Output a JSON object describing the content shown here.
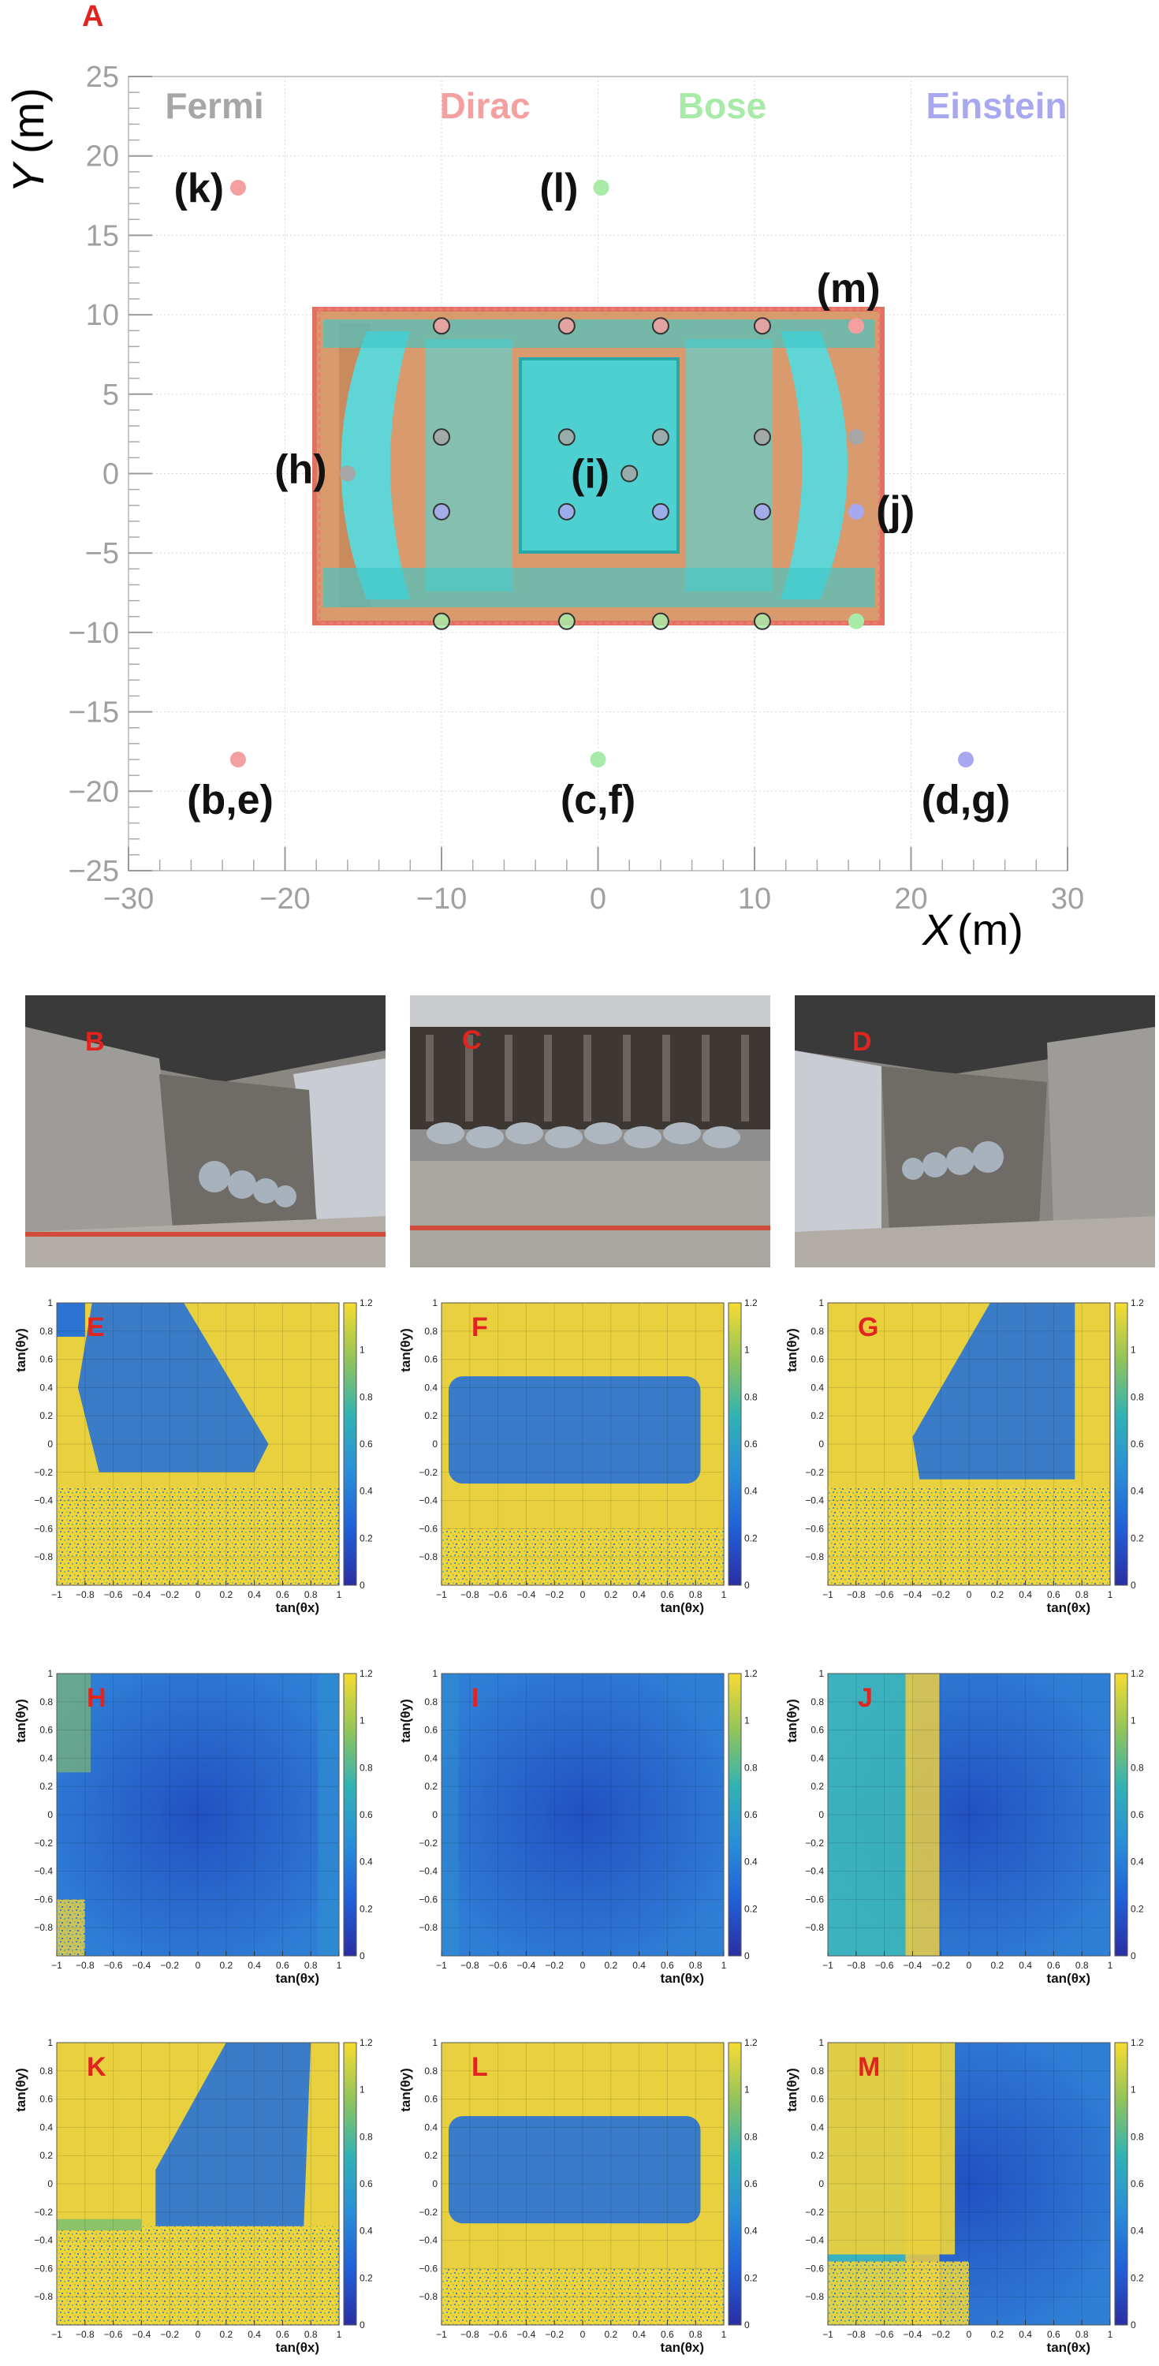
{
  "panel_a": {
    "letter": "A",
    "title_words": [
      {
        "text": "Fermi",
        "color": "#a6a6a6"
      },
      {
        "text": "Dirac",
        "color": "#f4a0a0"
      },
      {
        "text": "Bose",
        "color": "#a8eaa8"
      },
      {
        "text": "Einstein",
        "color": "#a8a8f0"
      }
    ],
    "xlabel_var": "X",
    "xlabel_unit": "(m)",
    "ylabel_var": "Y",
    "ylabel_unit": "(m)"
  },
  "photo_letters": {
    "b": "B",
    "c": "C",
    "d": "D"
  },
  "heatmap_letters": [
    "E",
    "F",
    "G",
    "H",
    "I",
    "J",
    "K",
    "L",
    "M"
  ],
  "heatmap_axes": {
    "xlabel": "tan(θx)",
    "ylabel": "tan(θy)"
  },
  "chart_data": [
    {
      "type": "scatter",
      "xlim": [
        -30,
        30
      ],
      "ylim": [
        -25,
        25
      ],
      "xticks": [
        "−30",
        "−20",
        "−10",
        "0",
        "10",
        "20",
        "30"
      ],
      "yticks": [
        "−25",
        "−20",
        "−15",
        "−10",
        "−5",
        "0",
        "5",
        "10",
        "15",
        "20",
        "25"
      ],
      "grid": true,
      "legend": "top",
      "series": [
        {
          "name": "Fermi",
          "color": "#a6a6a6",
          "points": [
            {
              "x": -16,
              "y": 0
            },
            {
              "x": -10,
              "y": 2.3
            },
            {
              "x": 10.5,
              "y": 2.3
            },
            {
              "x": 16.5,
              "y": 2.3
            },
            {
              "x": -2,
              "y": 2.3
            },
            {
              "x": 4,
              "y": 2.3
            },
            {
              "x": 2,
              "y": 0
            }
          ]
        },
        {
          "name": "Dirac",
          "color": "#f4a0a0",
          "points": [
            {
              "x": -23,
              "y": 18
            },
            {
              "x": -23,
              "y": -18
            },
            {
              "x": 16.5,
              "y": 9.3
            },
            {
              "x": -10,
              "y": 9.3
            },
            {
              "x": -2,
              "y": 9.3
            },
            {
              "x": 4,
              "y": 9.3
            },
            {
              "x": 10.5,
              "y": 9.3
            }
          ]
        },
        {
          "name": "Bose",
          "color": "#a8eaa8",
          "points": [
            {
              "x": 0.2,
              "y": 18
            },
            {
              "x": 0,
              "y": -18
            },
            {
              "x": -10,
              "y": -9.3
            },
            {
              "x": -2,
              "y": -9.3
            },
            {
              "x": 4,
              "y": -9.3
            },
            {
              "x": 10.5,
              "y": -9.3
            },
            {
              "x": 16.5,
              "y": -9.3
            }
          ]
        },
        {
          "name": "Einstein",
          "color": "#a8a8f0",
          "points": [
            {
              "x": 23.5,
              "y": -18
            },
            {
              "x": 16.5,
              "y": -2.4
            },
            {
              "x": -10,
              "y": -2.4
            },
            {
              "x": -2,
              "y": -2.4
            },
            {
              "x": 4,
              "y": -2.4
            },
            {
              "x": 10.5,
              "y": -2.4
            }
          ]
        }
      ],
      "annotations": [
        {
          "text": "(k)",
          "x": -25.5,
          "y": 18
        },
        {
          "text": "(l)",
          "x": -2.5,
          "y": 18
        },
        {
          "text": "(m)",
          "x": 16,
          "y": 11.7
        },
        {
          "text": "(h)",
          "x": -19,
          "y": 0.3
        },
        {
          "text": "(i)",
          "x": -0.5,
          "y": 0
        },
        {
          "text": "(j)",
          "x": 19,
          "y": -2.3
        },
        {
          "text": "(b,e)",
          "x": -23.5,
          "y": -20.5
        },
        {
          "text": "(c,f)",
          "x": 0,
          "y": -20.5
        },
        {
          "text": "(d,g)",
          "x": 23.5,
          "y": -20.5
        }
      ]
    },
    {
      "type": "heatmap",
      "panels": [
        "E",
        "F",
        "G",
        "H",
        "I",
        "J",
        "K",
        "L",
        "M"
      ],
      "xlim": [
        -1,
        1
      ],
      "ylim": [
        -1,
        1
      ],
      "xticks": [
        "−1",
        "−0.8",
        "−0.6",
        "−0.4",
        "−0.2",
        "0",
        "0.2",
        "0.4",
        "0.6",
        "0.8",
        "1"
      ],
      "yticks": [
        "−0.8",
        "−0.6",
        "−0.4",
        "−0.2",
        "0",
        "0.2",
        "0.4",
        "0.6",
        "0.8",
        "1"
      ],
      "colorbar": {
        "min": 0,
        "max": 1.2,
        "ticks": [
          "0",
          "0.2",
          "0.4",
          "0.6",
          "0.8",
          "1",
          "1.2"
        ]
      },
      "xlabel": "tan(θx)",
      "ylabel": "tan(θy)"
    }
  ]
}
